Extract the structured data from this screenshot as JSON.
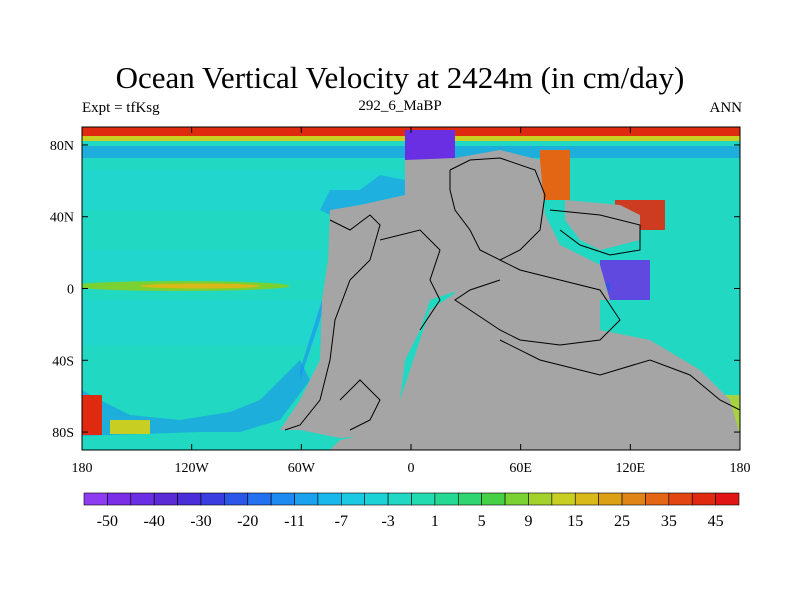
{
  "header": {
    "title": "Ocean Vertical Velocity at 2424m (in cm/day)",
    "left": "Expt = tfKsg",
    "center": "292_6_MaBP",
    "right": "ANN"
  },
  "chart_data": {
    "type": "heatmap",
    "title": "Ocean Vertical Velocity at 2424m (in cm/day)",
    "subtitle": "292_6_MaBP",
    "xlabel": "",
    "ylabel": "",
    "xlim": [
      -180,
      180
    ],
    "ylim": [
      -90,
      90
    ],
    "x_ticks": [
      {
        "value": -180,
        "label": "180"
      },
      {
        "value": -120,
        "label": "120W"
      },
      {
        "value": -60,
        "label": "60W"
      },
      {
        "value": 0,
        "label": "0"
      },
      {
        "value": 60,
        "label": "60E"
      },
      {
        "value": 120,
        "label": "120E"
      },
      {
        "value": 180,
        "label": "180"
      }
    ],
    "y_ticks": [
      {
        "value": 80,
        "label": "80N"
      },
      {
        "value": 40,
        "label": "40N"
      },
      {
        "value": 0,
        "label": "0"
      },
      {
        "value": -40,
        "label": "40S"
      },
      {
        "value": -80,
        "label": "80S"
      }
    ],
    "colorbar": {
      "levels": [
        -50,
        -45,
        -40,
        -35,
        -30,
        -25,
        -20,
        -15,
        -11,
        -9,
        -7,
        -5,
        -3,
        -1,
        1,
        3,
        5,
        7,
        9,
        11,
        15,
        20,
        25,
        30,
        35,
        40,
        45
      ],
      "labels": [
        "-50",
        "-40",
        "-30",
        "-20",
        "-11",
        "-7",
        "-3",
        "1",
        "5",
        "9",
        "15",
        "25",
        "35",
        "45"
      ],
      "colors": [
        "#8e3cf1",
        "#7b2ee6",
        "#6a2fe3",
        "#5b2cd6",
        "#4a2fd8",
        "#3a3ee0",
        "#2b56e8",
        "#2570ef",
        "#1c8af0",
        "#1aa2ee",
        "#19b8ec",
        "#1cc9e3",
        "#1dd2d6",
        "#20d8c4",
        "#23dbb0",
        "#25d995",
        "#2fd570",
        "#45d046",
        "#7ad132",
        "#a4d22c",
        "#c9cf22",
        "#d9b81a",
        "#dd9f16",
        "#e08515",
        "#e26614",
        "#e24512",
        "#e02a10",
        "#e01414"
      ]
    },
    "land_color": "#a5a5a5",
    "background_ocean_value": "-1 to 1"
  }
}
